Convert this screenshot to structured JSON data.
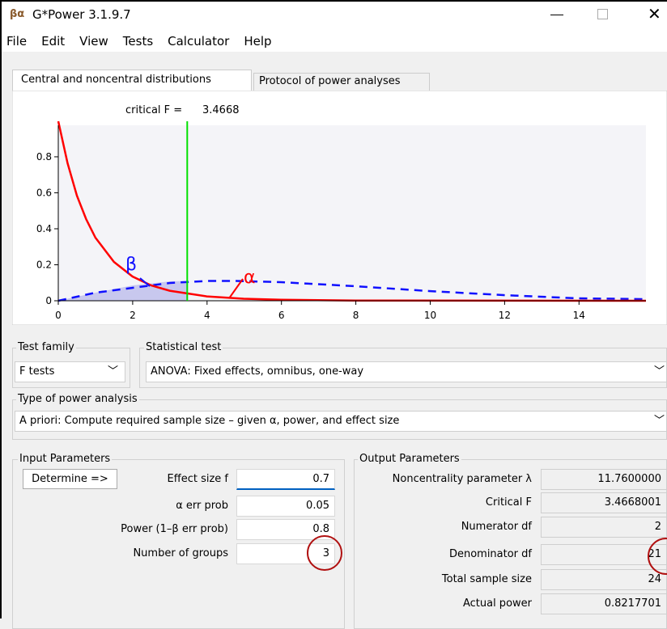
{
  "window": {
    "title": "G*Power 3.1.9.7"
  },
  "menu": [
    "File",
    "Edit",
    "View",
    "Tests",
    "Calculator",
    "Help"
  ],
  "tabs": [
    "Central and noncentral distributions",
    "Protocol of power analyses"
  ],
  "plot": {
    "critical_label": "critical F =",
    "critical_value": 3.4668,
    "beta_label": "β",
    "alpha_label": "α",
    "xlim": [
      0,
      15.8
    ],
    "ylim": [
      0,
      0.975
    ],
    "xticks": [
      0,
      2,
      4,
      6,
      8,
      10,
      12,
      14
    ],
    "yticks": [
      0,
      0.2,
      0.4,
      0.6,
      0.8
    ]
  },
  "test_family": {
    "label": "Test family",
    "value": "F tests"
  },
  "statistical_test": {
    "label": "Statistical test",
    "value": "ANOVA: Fixed effects, omnibus, one-way"
  },
  "power_analysis": {
    "label": "Type of power analysis",
    "value": "A priori: Compute required sample size – given α, power, and effect size"
  },
  "input": {
    "title": "Input Parameters",
    "button": "Determine =>",
    "rows": [
      {
        "label": "Effect size f",
        "value": "0.7"
      },
      {
        "label": "α err prob",
        "value": "0.05"
      },
      {
        "label": "Power (1–β err prob)",
        "value": "0.8"
      },
      {
        "label": "Number of groups",
        "value": "3"
      }
    ]
  },
  "output": {
    "title": "Output Parameters",
    "rows": [
      {
        "label": "Noncentrality parameter λ",
        "value": "11.7600000"
      },
      {
        "label": "Critical F",
        "value": "3.4668001"
      },
      {
        "label": "Numerator df",
        "value": "2"
      },
      {
        "label": "Denominator df",
        "value": "21"
      },
      {
        "label": "Total sample size",
        "value": "24"
      },
      {
        "label": "Actual power",
        "value": "0.8217701"
      }
    ]
  }
}
